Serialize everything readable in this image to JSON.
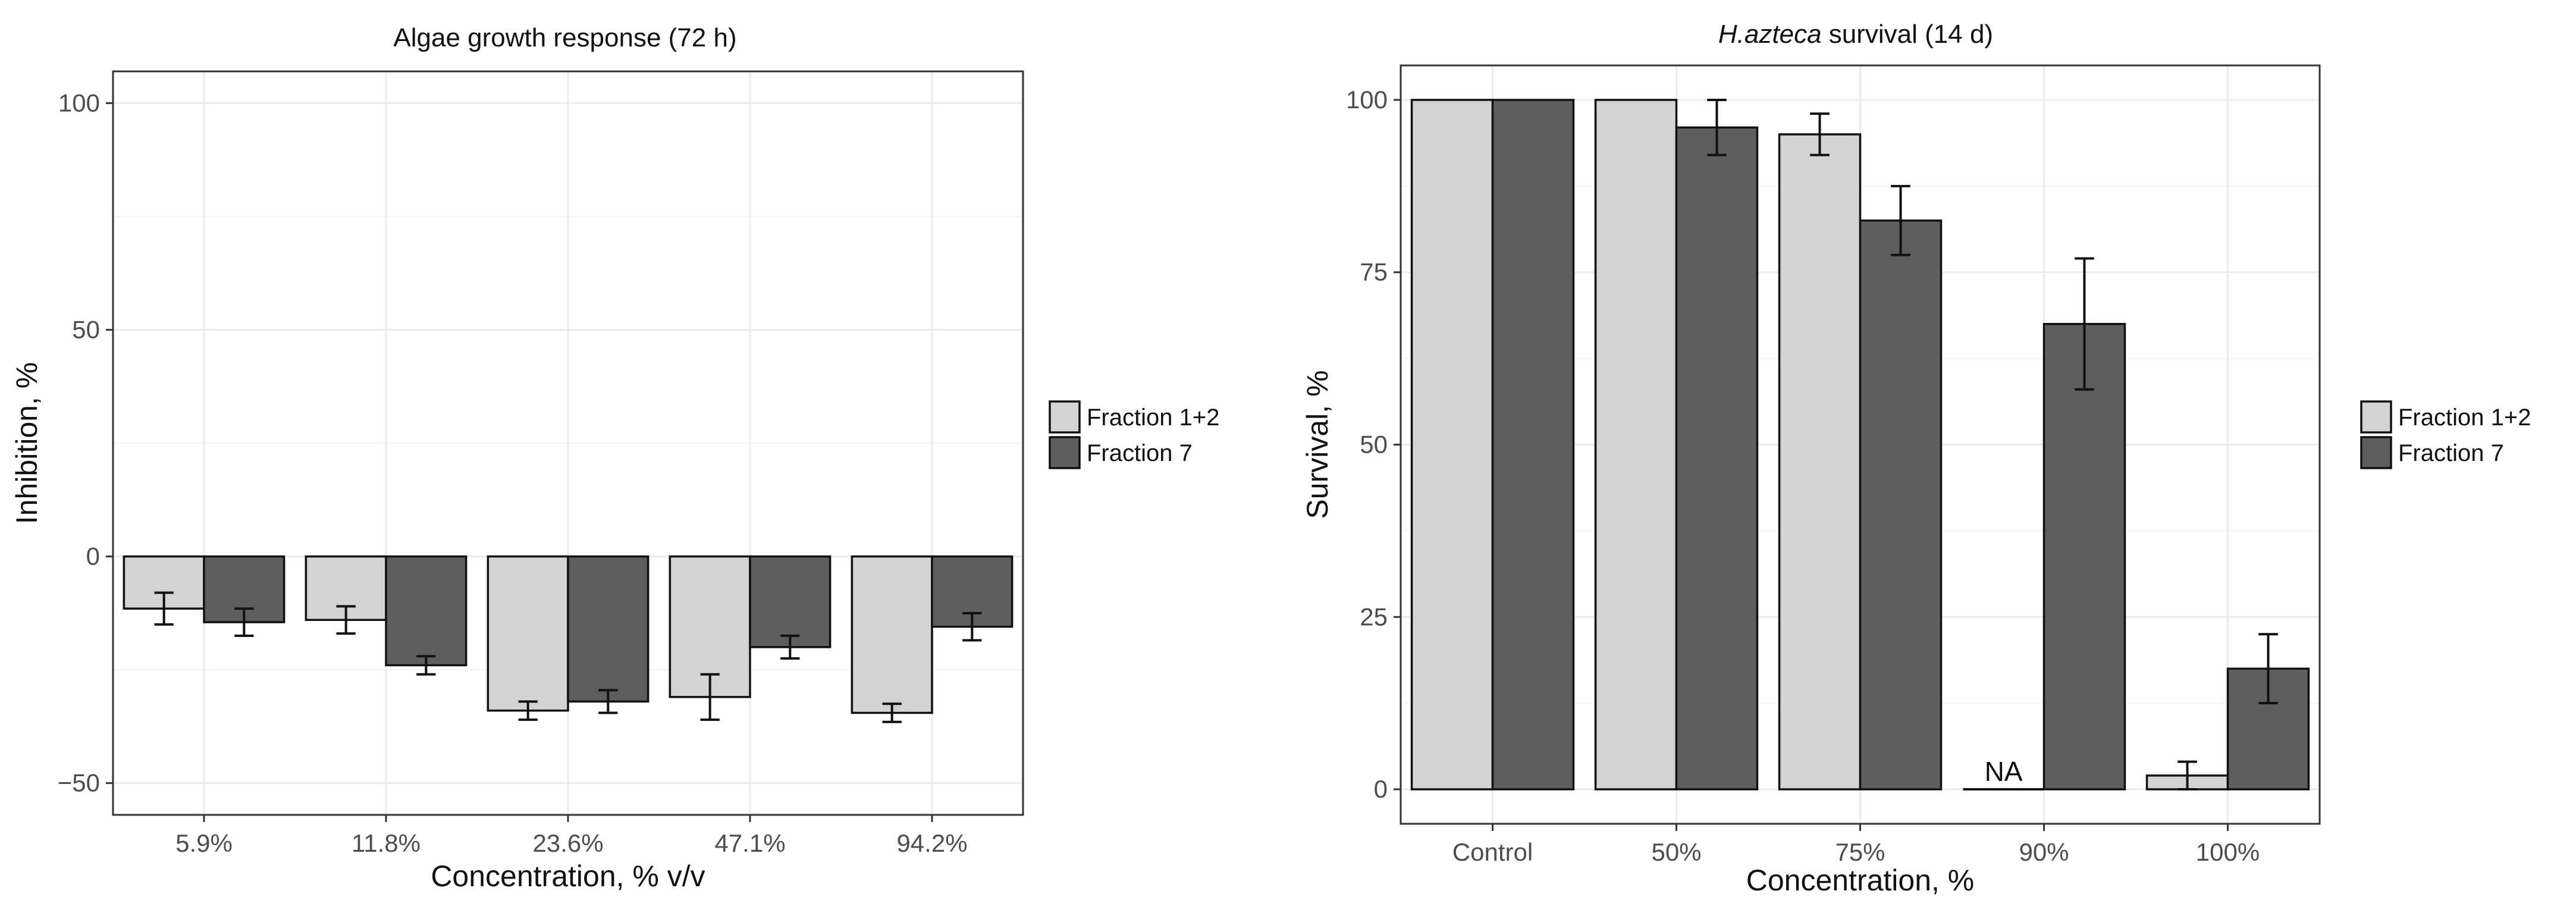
{
  "chart_data": [
    {
      "type": "bar",
      "title": "Algae growth response (72 h)",
      "xlabel": "Concentration, % v/v",
      "ylabel": "Inhibition, %",
      "ylim": [
        -57,
        107
      ],
      "yticks": [
        -50,
        0,
        50,
        100
      ],
      "yticklabels": [
        "−50",
        "0",
        "50",
        "100"
      ],
      "categories": [
        "5.9%",
        "11.8%",
        "23.6%",
        "47.1%",
        "94.2%"
      ],
      "series": [
        {
          "name": "Fraction 1+2",
          "color": "#d3d3d3",
          "values": [
            -11.5,
            -14,
            -34,
            -31,
            -34.5
          ],
          "errors": [
            3.5,
            3,
            2,
            5,
            2
          ]
        },
        {
          "name": "Fraction 7",
          "color": "#5e5e5e",
          "values": [
            -14.5,
            -24,
            -32,
            -20,
            -15.5
          ],
          "errors": [
            3,
            2,
            2.5,
            2.5,
            3
          ]
        }
      ],
      "annotations": [],
      "legend": "right"
    },
    {
      "type": "bar",
      "title_italic": "H.azteca",
      "title_rest": " survival (14 d)",
      "xlabel": "Concentration, %",
      "ylabel": "Survival, %",
      "ylim": [
        -5,
        105
      ],
      "yticks": [
        0,
        25,
        50,
        75,
        100
      ],
      "yticklabels": [
        "0",
        "25",
        "50",
        "75",
        "100"
      ],
      "categories": [
        "Control",
        "50%",
        "75%",
        "90%",
        "100%"
      ],
      "series": [
        {
          "name": "Fraction 1+2",
          "color": "#d3d3d3",
          "values": [
            100,
            100,
            95,
            0,
            2
          ],
          "errors": [
            0,
            0,
            3,
            0,
            2
          ]
        },
        {
          "name": "Fraction 7",
          "color": "#5e5e5e",
          "values": [
            100,
            96,
            82.5,
            67.5,
            17.5
          ],
          "errors": [
            0,
            4,
            5,
            9.5,
            5
          ]
        }
      ],
      "annotations": [
        {
          "category_index": 3,
          "series_index": 0,
          "text": "NA"
        }
      ],
      "legend": "right"
    }
  ]
}
